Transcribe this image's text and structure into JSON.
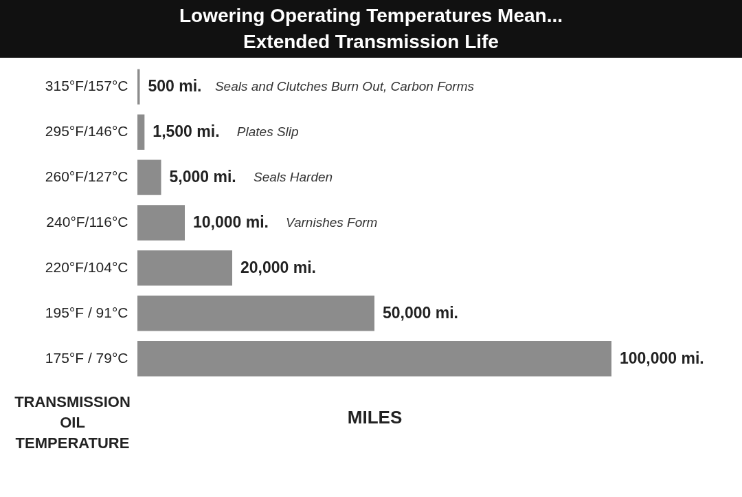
{
  "chart_data": {
    "type": "bar",
    "orientation": "horizontal",
    "title": "Lowering Operating Temperatures Mean...",
    "subtitle": "Extended Transmission Life",
    "xlabel": "MILES",
    "ylabel": "TRANSMISSION OIL TEMPERATURE",
    "categories": [
      "315°F/157°C",
      "295°F/146°C",
      "260°F/127°C",
      "240°F/116°C",
      "220°F/104°C",
      "195°F / 91°C",
      "175°F / 79°C"
    ],
    "values": [
      500,
      1500,
      5000,
      10000,
      20000,
      50000,
      100000
    ],
    "value_labels": [
      "500 mi.",
      "1,500 mi.",
      "5,000 mi.",
      "10,000 mi.",
      "20,000 mi.",
      "50,000 mi.",
      "100,000 mi."
    ],
    "color": "#8c8c8c",
    "grid": false,
    "annotations": [
      "Seals and Clutches Burn Out, Carbon Forms",
      "Plates Slip",
      "Seals Harden",
      "Varnishes Form"
    ]
  }
}
